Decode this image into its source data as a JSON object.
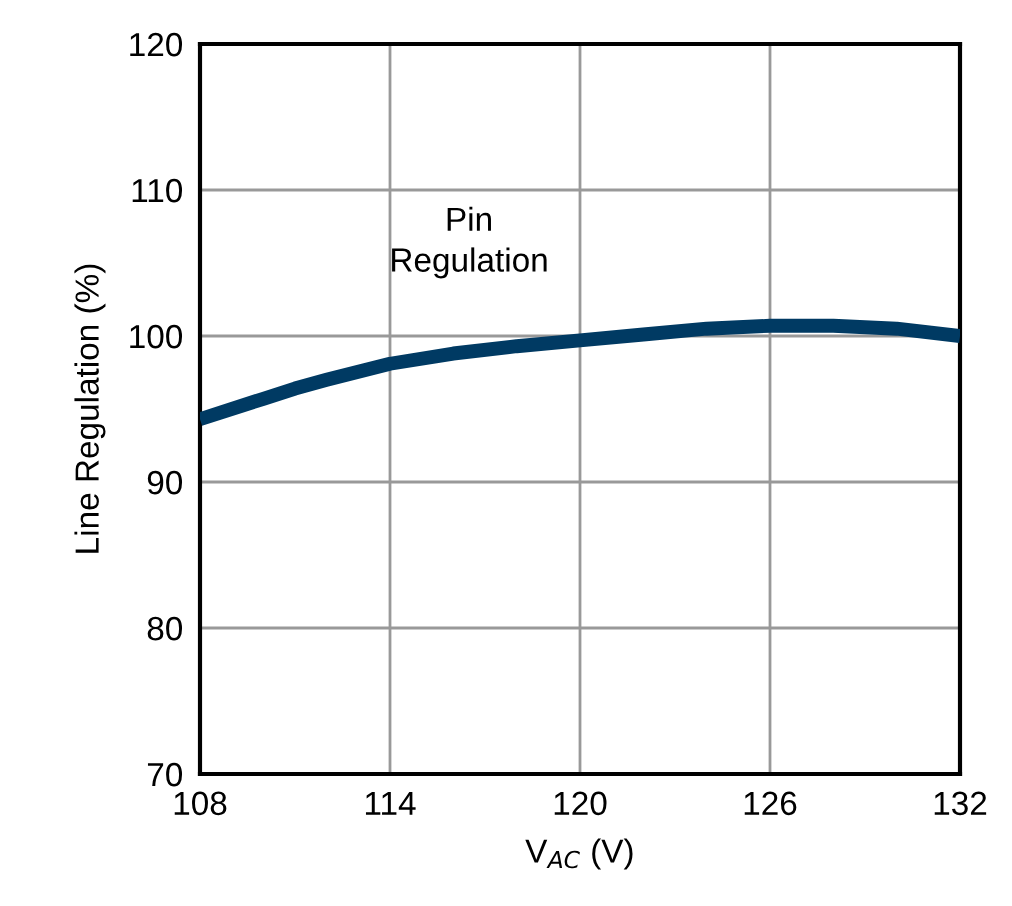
{
  "chart_data": {
    "type": "line",
    "xlabel": "V$_{AC}$ (V)",
    "ylabel": "Line Regulation (%)",
    "x": [
      108,
      110,
      111,
      112,
      114,
      116,
      118,
      120,
      122,
      124,
      126,
      128,
      130,
      132
    ],
    "series": [
      {
        "color": "#003a63",
        "values": [
          94.3,
          95.7,
          96.4,
          97.0,
          98.1,
          98.8,
          99.3,
          99.7,
          100.1,
          100.5,
          100.7,
          100.7,
          100.5,
          100.0
        ]
      }
    ],
    "annotations": [
      "Pin\nRegulation"
    ],
    "xlim": [
      108,
      132
    ],
    "xticks": [
      108,
      114,
      120,
      126,
      132
    ],
    "ylim": [
      70,
      120
    ],
    "yticks": [
      70,
      80,
      90,
      100,
      110,
      120
    ],
    "grid": true,
    "marker": "none",
    "line_style": "solid"
  }
}
